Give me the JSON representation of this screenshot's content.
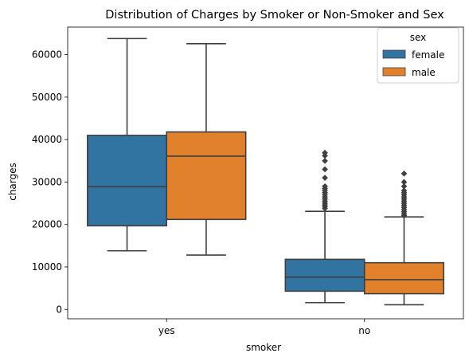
{
  "chart_data": {
    "type": "boxplot",
    "title": "Distribution of Charges by Smoker or Non-Smoker and Sex",
    "xlabel": "smoker",
    "ylabel": "charges",
    "categories": [
      "yes",
      "no"
    ],
    "ylim": [
      -2200,
      66500
    ],
    "yticks": [
      0,
      10000,
      20000,
      30000,
      40000,
      50000,
      60000
    ],
    "ytick_labels": [
      "0",
      "10000",
      "20000",
      "30000",
      "40000",
      "50000",
      "60000"
    ],
    "grid": false,
    "legend": {
      "title": "sex",
      "placement": "top-right"
    },
    "series": [
      {
        "name": "female",
        "color": "#3274a1",
        "boxes": [
          {
            "category": "yes",
            "whisker_low": 13800,
            "q1": 19700,
            "median": 28900,
            "q3": 41000,
            "whisker_high": 63800,
            "outliers": []
          },
          {
            "category": "no",
            "whisker_low": 1600,
            "q1": 4300,
            "median": 7600,
            "q3": 11800,
            "whisker_high": 23100,
            "outliers": [
              23800,
              24200,
              24600,
              25000,
              25500,
              26000,
              26500,
              27000,
              27500,
              28000,
              28500,
              29000,
              31000,
              33000,
              35000,
              36200,
              36900
            ]
          }
        ]
      },
      {
        "name": "male",
        "color": "#e1812c",
        "boxes": [
          {
            "category": "yes",
            "whisker_low": 12800,
            "q1": 21200,
            "median": 36100,
            "q3": 41800,
            "whisker_high": 62600,
            "outliers": []
          },
          {
            "category": "no",
            "whisker_low": 1100,
            "q1": 3700,
            "median": 7000,
            "q3": 11000,
            "whisker_high": 21800,
            "outliers": [
              22100,
              22500,
              23000,
              23500,
              24000,
              24500,
              25000,
              25500,
              26000,
              26500,
              27000,
              27500,
              28000,
              29000,
              30000,
              32000
            ]
          }
        ]
      }
    ]
  }
}
